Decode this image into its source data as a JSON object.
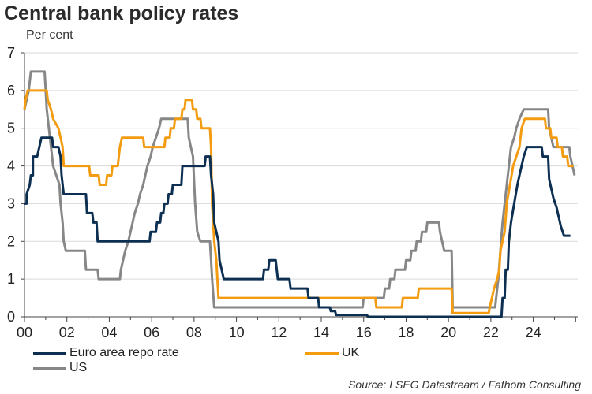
{
  "title": "Central bank policy rates",
  "subtitle": "Per cent",
  "source": "Source: LSEG Datastream / Fathom Consulting",
  "colors": {
    "euro": "#0c2f52",
    "uk": "#f39c12",
    "us": "#878787",
    "grid": "#d9d9d9",
    "axis": "#444444"
  },
  "chart_data": {
    "type": "line",
    "title": "Central bank policy rates",
    "ylabel": "Per cent",
    "xlabel": "",
    "xlim": [
      2000,
      2026.1
    ],
    "ylim": [
      0,
      7
    ],
    "yticks": [
      0,
      1,
      2,
      3,
      4,
      5,
      6,
      7
    ],
    "xticks": [
      {
        "value": 2000,
        "label": "00"
      },
      {
        "value": 2002,
        "label": "02"
      },
      {
        "value": 2004,
        "label": "04"
      },
      {
        "value": 2006,
        "label": "06"
      },
      {
        "value": 2008,
        "label": "08"
      },
      {
        "value": 2010,
        "label": "10"
      },
      {
        "value": 2012,
        "label": "12"
      },
      {
        "value": 2014,
        "label": "14"
      },
      {
        "value": 2016,
        "label": "16"
      },
      {
        "value": 2018,
        "label": "18"
      },
      {
        "value": 2020,
        "label": "20"
      },
      {
        "value": 2022,
        "label": "22"
      },
      {
        "value": 2024,
        "label": "24"
      }
    ],
    "grid": true,
    "series": [
      {
        "key": "euro",
        "name": "Euro area repo rate",
        "points": [
          [
            2000.0,
            3.0
          ],
          [
            2000.1,
            3.0
          ],
          [
            2000.1,
            3.25
          ],
          [
            2000.25,
            3.5
          ],
          [
            2000.3,
            3.75
          ],
          [
            2000.4,
            3.75
          ],
          [
            2000.4,
            4.25
          ],
          [
            2000.6,
            4.25
          ],
          [
            2000.7,
            4.5
          ],
          [
            2000.8,
            4.75
          ],
          [
            2001.3,
            4.75
          ],
          [
            2001.35,
            4.5
          ],
          [
            2001.6,
            4.5
          ],
          [
            2001.7,
            4.25
          ],
          [
            2001.75,
            3.75
          ],
          [
            2001.85,
            3.25
          ],
          [
            2002.9,
            3.25
          ],
          [
            2002.95,
            2.75
          ],
          [
            2003.2,
            2.75
          ],
          [
            2003.25,
            2.5
          ],
          [
            2003.4,
            2.5
          ],
          [
            2003.45,
            2.0
          ],
          [
            2005.9,
            2.0
          ],
          [
            2005.95,
            2.25
          ],
          [
            2006.2,
            2.25
          ],
          [
            2006.25,
            2.5
          ],
          [
            2006.4,
            2.5
          ],
          [
            2006.45,
            2.75
          ],
          [
            2006.55,
            2.75
          ],
          [
            2006.6,
            3.0
          ],
          [
            2006.75,
            3.0
          ],
          [
            2006.8,
            3.25
          ],
          [
            2006.95,
            3.25
          ],
          [
            2007.0,
            3.5
          ],
          [
            2007.4,
            3.5
          ],
          [
            2007.45,
            4.0
          ],
          [
            2008.5,
            4.0
          ],
          [
            2008.55,
            4.25
          ],
          [
            2008.75,
            4.25
          ],
          [
            2008.8,
            3.75
          ],
          [
            2008.9,
            3.25
          ],
          [
            2008.95,
            2.5
          ],
          [
            2009.15,
            2.0
          ],
          [
            2009.2,
            1.5
          ],
          [
            2009.3,
            1.25
          ],
          [
            2009.4,
            1.0
          ],
          [
            2011.25,
            1.0
          ],
          [
            2011.3,
            1.25
          ],
          [
            2011.5,
            1.25
          ],
          [
            2011.55,
            1.5
          ],
          [
            2011.85,
            1.5
          ],
          [
            2011.9,
            1.25
          ],
          [
            2011.95,
            1.0
          ],
          [
            2012.5,
            1.0
          ],
          [
            2012.55,
            0.75
          ],
          [
            2013.35,
            0.75
          ],
          [
            2013.4,
            0.5
          ],
          [
            2013.85,
            0.5
          ],
          [
            2013.9,
            0.25
          ],
          [
            2014.4,
            0.25
          ],
          [
            2014.45,
            0.15
          ],
          [
            2014.65,
            0.15
          ],
          [
            2014.7,
            0.05
          ],
          [
            2016.15,
            0.05
          ],
          [
            2016.2,
            0.0
          ],
          [
            2022.5,
            0.0
          ],
          [
            2022.55,
            0.5
          ],
          [
            2022.65,
            0.5
          ],
          [
            2022.7,
            1.25
          ],
          [
            2022.8,
            1.25
          ],
          [
            2022.85,
            2.0
          ],
          [
            2022.95,
            2.5
          ],
          [
            2023.1,
            3.0
          ],
          [
            2023.25,
            3.5
          ],
          [
            2023.35,
            3.75
          ],
          [
            2023.45,
            4.0
          ],
          [
            2023.55,
            4.25
          ],
          [
            2023.7,
            4.5
          ],
          [
            2024.4,
            4.5
          ],
          [
            2024.45,
            4.25
          ],
          [
            2024.7,
            4.25
          ],
          [
            2024.75,
            3.65
          ],
          [
            2024.85,
            3.4
          ],
          [
            2024.95,
            3.15
          ],
          [
            2025.1,
            2.9
          ],
          [
            2025.2,
            2.65
          ],
          [
            2025.3,
            2.4
          ],
          [
            2025.45,
            2.15
          ],
          [
            2025.75,
            2.15
          ]
        ]
      },
      {
        "key": "uk",
        "name": "UK",
        "points": [
          [
            2000.0,
            5.5
          ],
          [
            2000.05,
            5.75
          ],
          [
            2000.15,
            6.0
          ],
          [
            2001.05,
            6.0
          ],
          [
            2001.1,
            5.75
          ],
          [
            2001.25,
            5.5
          ],
          [
            2001.35,
            5.25
          ],
          [
            2001.6,
            5.0
          ],
          [
            2001.7,
            4.75
          ],
          [
            2001.8,
            4.5
          ],
          [
            2001.85,
            4.0
          ],
          [
            2003.05,
            4.0
          ],
          [
            2003.1,
            3.75
          ],
          [
            2003.5,
            3.75
          ],
          [
            2003.55,
            3.5
          ],
          [
            2003.85,
            3.5
          ],
          [
            2003.9,
            3.75
          ],
          [
            2004.1,
            3.75
          ],
          [
            2004.15,
            4.0
          ],
          [
            2004.4,
            4.0
          ],
          [
            2004.45,
            4.25
          ],
          [
            2004.5,
            4.5
          ],
          [
            2004.6,
            4.75
          ],
          [
            2005.6,
            4.75
          ],
          [
            2005.65,
            4.5
          ],
          [
            2006.6,
            4.5
          ],
          [
            2006.65,
            4.75
          ],
          [
            2006.85,
            4.75
          ],
          [
            2006.9,
            5.0
          ],
          [
            2007.05,
            5.0
          ],
          [
            2007.1,
            5.25
          ],
          [
            2007.4,
            5.25
          ],
          [
            2007.45,
            5.5
          ],
          [
            2007.55,
            5.5
          ],
          [
            2007.6,
            5.75
          ],
          [
            2007.9,
            5.75
          ],
          [
            2007.95,
            5.5
          ],
          [
            2008.1,
            5.5
          ],
          [
            2008.15,
            5.25
          ],
          [
            2008.3,
            5.25
          ],
          [
            2008.35,
            5.0
          ],
          [
            2008.75,
            5.0
          ],
          [
            2008.8,
            4.5
          ],
          [
            2008.85,
            3.0
          ],
          [
            2008.95,
            2.0
          ],
          [
            2009.05,
            1.5
          ],
          [
            2009.1,
            1.0
          ],
          [
            2009.15,
            0.5
          ],
          [
            2016.55,
            0.5
          ],
          [
            2016.6,
            0.25
          ],
          [
            2017.8,
            0.25
          ],
          [
            2017.85,
            0.5
          ],
          [
            2018.55,
            0.5
          ],
          [
            2018.6,
            0.75
          ],
          [
            2020.15,
            0.75
          ],
          [
            2020.2,
            0.1
          ],
          [
            2021.9,
            0.1
          ],
          [
            2021.95,
            0.25
          ],
          [
            2022.05,
            0.5
          ],
          [
            2022.15,
            0.75
          ],
          [
            2022.3,
            1.0
          ],
          [
            2022.4,
            1.25
          ],
          [
            2022.45,
            1.75
          ],
          [
            2022.65,
            2.25
          ],
          [
            2022.75,
            3.0
          ],
          [
            2022.9,
            3.5
          ],
          [
            2023.05,
            4.0
          ],
          [
            2023.2,
            4.25
          ],
          [
            2023.35,
            4.5
          ],
          [
            2023.45,
            5.0
          ],
          [
            2023.6,
            5.25
          ],
          [
            2024.55,
            5.25
          ],
          [
            2024.6,
            5.0
          ],
          [
            2024.8,
            5.0
          ],
          [
            2024.85,
            4.75
          ],
          [
            2025.1,
            4.75
          ],
          [
            2025.15,
            4.5
          ],
          [
            2025.35,
            4.5
          ],
          [
            2025.4,
            4.25
          ],
          [
            2025.6,
            4.25
          ],
          [
            2025.65,
            4.0
          ],
          [
            2025.9,
            4.0
          ]
        ]
      },
      {
        "key": "us",
        "name": "US",
        "points": [
          [
            2000.0,
            5.5
          ],
          [
            2000.1,
            5.75
          ],
          [
            2000.2,
            6.0
          ],
          [
            2000.3,
            6.5
          ],
          [
            2000.95,
            6.5
          ],
          [
            2001.0,
            6.0
          ],
          [
            2001.05,
            5.5
          ],
          [
            2001.15,
            5.0
          ],
          [
            2001.25,
            4.5
          ],
          [
            2001.35,
            4.0
          ],
          [
            2001.5,
            3.75
          ],
          [
            2001.65,
            3.5
          ],
          [
            2001.7,
            3.0
          ],
          [
            2001.8,
            2.5
          ],
          [
            2001.85,
            2.0
          ],
          [
            2001.95,
            1.75
          ],
          [
            2002.85,
            1.75
          ],
          [
            2002.9,
            1.25
          ],
          [
            2003.45,
            1.25
          ],
          [
            2003.5,
            1.0
          ],
          [
            2004.5,
            1.0
          ],
          [
            2004.55,
            1.25
          ],
          [
            2004.65,
            1.5
          ],
          [
            2004.75,
            1.75
          ],
          [
            2004.9,
            2.0
          ],
          [
            2005.0,
            2.25
          ],
          [
            2005.1,
            2.5
          ],
          [
            2005.2,
            2.75
          ],
          [
            2005.35,
            3.0
          ],
          [
            2005.45,
            3.25
          ],
          [
            2005.6,
            3.5
          ],
          [
            2005.7,
            3.75
          ],
          [
            2005.8,
            4.0
          ],
          [
            2005.95,
            4.25
          ],
          [
            2006.05,
            4.5
          ],
          [
            2006.2,
            4.75
          ],
          [
            2006.35,
            5.0
          ],
          [
            2006.45,
            5.25
          ],
          [
            2007.7,
            5.25
          ],
          [
            2007.75,
            4.75
          ],
          [
            2007.85,
            4.5
          ],
          [
            2007.95,
            4.25
          ],
          [
            2008.05,
            3.0
          ],
          [
            2008.15,
            2.25
          ],
          [
            2008.3,
            2.0
          ],
          [
            2008.75,
            2.0
          ],
          [
            2008.8,
            1.5
          ],
          [
            2008.85,
            1.0
          ],
          [
            2008.95,
            0.25
          ],
          [
            2015.95,
            0.25
          ],
          [
            2016.0,
            0.5
          ],
          [
            2016.95,
            0.5
          ],
          [
            2017.0,
            0.75
          ],
          [
            2017.2,
            0.75
          ],
          [
            2017.25,
            1.0
          ],
          [
            2017.45,
            1.0
          ],
          [
            2017.5,
            1.25
          ],
          [
            2017.95,
            1.25
          ],
          [
            2018.0,
            1.5
          ],
          [
            2018.2,
            1.5
          ],
          [
            2018.25,
            1.75
          ],
          [
            2018.45,
            1.75
          ],
          [
            2018.5,
            2.0
          ],
          [
            2018.7,
            2.0
          ],
          [
            2018.75,
            2.25
          ],
          [
            2018.95,
            2.25
          ],
          [
            2019.0,
            2.5
          ],
          [
            2019.55,
            2.5
          ],
          [
            2019.6,
            2.25
          ],
          [
            2019.7,
            2.0
          ],
          [
            2019.8,
            1.75
          ],
          [
            2020.15,
            1.75
          ],
          [
            2020.2,
            0.25
          ],
          [
            2022.2,
            0.25
          ],
          [
            2022.25,
            0.5
          ],
          [
            2022.35,
            1.0
          ],
          [
            2022.45,
            1.75
          ],
          [
            2022.55,
            2.5
          ],
          [
            2022.7,
            3.25
          ],
          [
            2022.85,
            4.0
          ],
          [
            2022.95,
            4.5
          ],
          [
            2023.1,
            4.75
          ],
          [
            2023.2,
            5.0
          ],
          [
            2023.35,
            5.25
          ],
          [
            2023.55,
            5.5
          ],
          [
            2024.7,
            5.5
          ],
          [
            2024.75,
            5.0
          ],
          [
            2024.85,
            4.75
          ],
          [
            2024.95,
            4.5
          ],
          [
            2025.7,
            4.5
          ],
          [
            2025.75,
            4.25
          ],
          [
            2025.85,
            4.0
          ],
          [
            2025.95,
            3.75
          ]
        ]
      }
    ]
  }
}
